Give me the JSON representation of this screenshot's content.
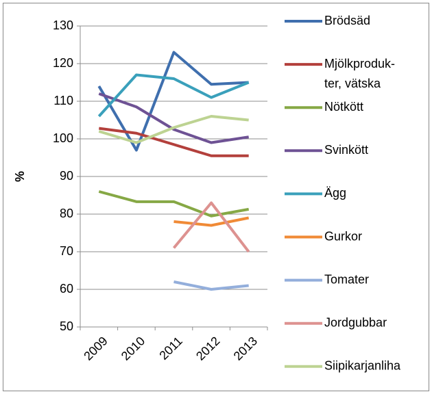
{
  "chart_data": {
    "type": "line",
    "y_label": "%",
    "categories": [
      "2009",
      "2010",
      "2011",
      "2012",
      "2013"
    ],
    "ylim": [
      50,
      130
    ],
    "yticks": [
      50,
      60,
      70,
      80,
      90,
      100,
      110,
      120,
      130
    ],
    "grid": true,
    "series": [
      {
        "name": "Brödsäd",
        "color": "#3f6fae",
        "values": [
          114,
          97,
          123,
          114.5,
          115
        ]
      },
      {
        "name": "Mjölkproduk-ter, vätska",
        "color": "#b3403c",
        "values": [
          102.8,
          101.5,
          98.5,
          95.5,
          95.5
        ]
      },
      {
        "name": "Nötkött",
        "color": "#86a845",
        "values": [
          86,
          83.3,
          83.3,
          79.5,
          81.3
        ]
      },
      {
        "name": "Svinkött",
        "color": "#6e5294",
        "values": [
          112,
          108.5,
          102.5,
          99,
          100.5
        ]
      },
      {
        "name": "Ägg",
        "color": "#3aa0bb",
        "values": [
          106,
          117,
          116,
          111,
          115
        ]
      },
      {
        "name": "Gurkor",
        "color": "#f08a36",
        "values": [
          null,
          null,
          78,
          77,
          79
        ]
      },
      {
        "name": "Tomater",
        "color": "#93aedb",
        "values": [
          null,
          null,
          62,
          60,
          61
        ]
      },
      {
        "name": "Jordgubbar",
        "color": "#dd9290",
        "values": [
          null,
          null,
          71,
          83,
          70
        ]
      },
      {
        "name": "Siipikarjanliha",
        "color": "#bdd392",
        "values": [
          102,
          99,
          103,
          106,
          105
        ]
      }
    ]
  }
}
